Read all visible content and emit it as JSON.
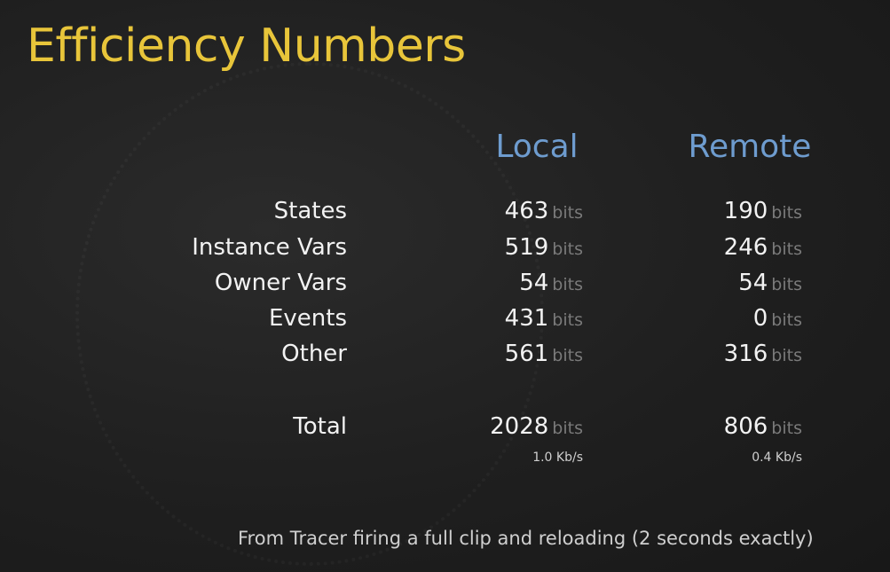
{
  "title": "Efficiency Numbers",
  "columns": {
    "local": "Local",
    "remote": "Remote"
  },
  "unit": "bits",
  "rows": [
    {
      "label": "States",
      "local": "463",
      "remote": "190"
    },
    {
      "label": "Instance Vars",
      "local": "519",
      "remote": "246"
    },
    {
      "label": "Owner Vars",
      "local": "54",
      "remote": "54"
    },
    {
      "label": "Events",
      "local": "431",
      "remote": "0"
    },
    {
      "label": "Other",
      "local": "561",
      "remote": "316"
    }
  ],
  "total": {
    "label": "Total",
    "local": "2028",
    "remote": "806",
    "local_rate": "1.0 Kb/s",
    "remote_rate": "0.4 Kb/s"
  },
  "footnote": "From Tracer firing a full clip and reloading (2 seconds exactly)"
}
